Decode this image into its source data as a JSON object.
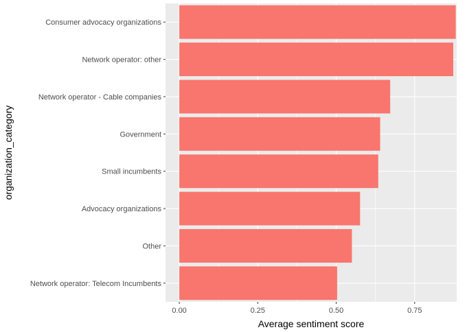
{
  "chart_data": {
    "type": "bar",
    "orientation": "horizontal",
    "title": "",
    "xlabel": "Average sentiment score",
    "ylabel": "organization_category",
    "categories": [
      "Consumer advocacy organizations",
      "Network operator: other",
      "Network operator - Cable companies",
      "Government",
      "Small incumbents",
      "Advocacy organizations",
      "Other",
      "Network operator: Telecom Incumbents"
    ],
    "values": [
      0.881,
      0.873,
      0.672,
      0.64,
      0.634,
      0.576,
      0.55,
      0.503
    ],
    "xlim": [
      -0.044,
      0.884
    ],
    "xticks": [
      0,
      0.25,
      0.5,
      0.75
    ],
    "xtick_labels": [
      "0.00",
      "0.25",
      "0.50",
      "0.75"
    ],
    "grid": true,
    "legend": "none",
    "colors": {
      "bar": "#F8766D",
      "panel": "#EBEBEB",
      "grid_major": "#FFFFFF",
      "text": "#4D4D4D"
    }
  }
}
